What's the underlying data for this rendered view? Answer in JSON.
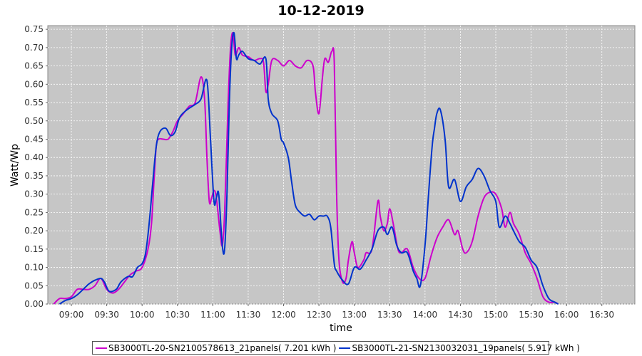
{
  "chart_data": {
    "type": "line",
    "title": "10-12-2019",
    "xlabel": "time",
    "ylabel": "Watt/Wp",
    "x_ticks": [
      "09:00",
      "09:30",
      "10:00",
      "10:30",
      "11:00",
      "11:30",
      "12:00",
      "12:30",
      "13:00",
      "13:30",
      "14:00",
      "14:30",
      "15:00",
      "15:30",
      "16:00",
      "16:30"
    ],
    "y_ticks": [
      "0.00",
      "0.05",
      "0.10",
      "0.15",
      "0.20",
      "0.25",
      "0.30",
      "0.35",
      "0.40",
      "0.45",
      "0.50",
      "0.55",
      "0.60",
      "0.65",
      "0.70",
      "0.75"
    ],
    "xlim": [
      "08:40",
      "16:58"
    ],
    "ylim": [
      0,
      0.76
    ],
    "grid": true,
    "legend_position": "bottom",
    "series": [
      {
        "name": "SB3000TL-20-SN2100578613_21panels( 7.201 kWh )",
        "color": "#cc00cc",
        "points": [
          [
            "08:45",
            0.0
          ],
          [
            "08:50",
            0.015
          ],
          [
            "08:55",
            0.015
          ],
          [
            "09:00",
            0.02
          ],
          [
            "09:05",
            0.04
          ],
          [
            "09:10",
            0.04
          ],
          [
            "09:15",
            0.04
          ],
          [
            "09:20",
            0.05
          ],
          [
            "09:25",
            0.07
          ],
          [
            "09:30",
            0.04
          ],
          [
            "09:35",
            0.03
          ],
          [
            "09:40",
            0.04
          ],
          [
            "09:45",
            0.06
          ],
          [
            "09:50",
            0.08
          ],
          [
            "09:55",
            0.09
          ],
          [
            "10:00",
            0.1
          ],
          [
            "10:05",
            0.15
          ],
          [
            "10:08",
            0.22
          ],
          [
            "10:10",
            0.33
          ],
          [
            "10:12",
            0.43
          ],
          [
            "10:14",
            0.45
          ],
          [
            "10:18",
            0.45
          ],
          [
            "10:22",
            0.45
          ],
          [
            "10:26",
            0.47
          ],
          [
            "10:30",
            0.5
          ],
          [
            "10:35",
            0.52
          ],
          [
            "10:40",
            0.54
          ],
          [
            "10:45",
            0.55
          ],
          [
            "10:50",
            0.62
          ],
          [
            "10:53",
            0.56
          ],
          [
            "10:55",
            0.4
          ],
          [
            "10:57",
            0.28
          ],
          [
            "10:59",
            0.29
          ],
          [
            "11:01",
            0.31
          ],
          [
            "11:03",
            0.29
          ],
          [
            "11:06",
            0.2
          ],
          [
            "11:08",
            0.16
          ],
          [
            "11:10",
            0.25
          ],
          [
            "11:13",
            0.55
          ],
          [
            "11:15",
            0.7
          ],
          [
            "11:17",
            0.74
          ],
          [
            "11:19",
            0.68
          ],
          [
            "11:22",
            0.7
          ],
          [
            "11:25",
            0.68
          ],
          [
            "11:30",
            0.675
          ],
          [
            "11:35",
            0.665
          ],
          [
            "11:40",
            0.67
          ],
          [
            "11:43",
            0.66
          ],
          [
            "11:45",
            0.58
          ],
          [
            "11:47",
            0.6
          ],
          [
            "11:50",
            0.665
          ],
          [
            "11:55",
            0.665
          ],
          [
            "12:00",
            0.65
          ],
          [
            "12:05",
            0.665
          ],
          [
            "12:10",
            0.65
          ],
          [
            "12:15",
            0.645
          ],
          [
            "12:20",
            0.665
          ],
          [
            "12:25",
            0.65
          ],
          [
            "12:27",
            0.58
          ],
          [
            "12:30",
            0.52
          ],
          [
            "12:33",
            0.62
          ],
          [
            "12:35",
            0.67
          ],
          [
            "12:38",
            0.66
          ],
          [
            "12:41",
            0.69
          ],
          [
            "12:43",
            0.66
          ],
          [
            "12:45",
            0.3
          ],
          [
            "12:47",
            0.12
          ],
          [
            "12:50",
            0.06
          ],
          [
            "12:53",
            0.07
          ],
          [
            "12:55",
            0.12
          ],
          [
            "12:58",
            0.17
          ],
          [
            "13:00",
            0.14
          ],
          [
            "13:03",
            0.1
          ],
          [
            "13:08",
            0.12
          ],
          [
            "13:10",
            0.14
          ],
          [
            "13:15",
            0.15
          ],
          [
            "13:20",
            0.28
          ],
          [
            "13:22",
            0.24
          ],
          [
            "13:25",
            0.2
          ],
          [
            "13:28",
            0.22
          ],
          [
            "13:30",
            0.26
          ],
          [
            "13:33",
            0.22
          ],
          [
            "13:37",
            0.15
          ],
          [
            "13:40",
            0.14
          ],
          [
            "13:45",
            0.15
          ],
          [
            "13:50",
            0.1
          ],
          [
            "13:55",
            0.07
          ],
          [
            "14:00",
            0.07
          ],
          [
            "14:05",
            0.13
          ],
          [
            "14:10",
            0.18
          ],
          [
            "14:15",
            0.21
          ],
          [
            "14:20",
            0.23
          ],
          [
            "14:25",
            0.19
          ],
          [
            "14:28",
            0.2
          ],
          [
            "14:32",
            0.15
          ],
          [
            "14:35",
            0.14
          ],
          [
            "14:40",
            0.17
          ],
          [
            "14:45",
            0.24
          ],
          [
            "14:50",
            0.29
          ],
          [
            "14:55",
            0.305
          ],
          [
            "15:00",
            0.3
          ],
          [
            "15:05",
            0.26
          ],
          [
            "15:08",
            0.21
          ],
          [
            "15:12",
            0.25
          ],
          [
            "15:15",
            0.22
          ],
          [
            "15:20",
            0.19
          ],
          [
            "15:25",
            0.14
          ],
          [
            "15:30",
            0.11
          ],
          [
            "15:35",
            0.07
          ],
          [
            "15:40",
            0.02
          ],
          [
            "15:45",
            0.005
          ],
          [
            "15:50",
            0.005
          ],
          [
            "15:53",
            0.0
          ]
        ]
      },
      {
        "name": "SB3000TL-21-SN2130032031_19panels( 5.917 kWh )",
        "color": "#0033cc",
        "points": [
          [
            "08:50",
            0.0
          ],
          [
            "08:55",
            0.01
          ],
          [
            "09:00",
            0.015
          ],
          [
            "09:05",
            0.025
          ],
          [
            "09:10",
            0.04
          ],
          [
            "09:15",
            0.055
          ],
          [
            "09:20",
            0.065
          ],
          [
            "09:25",
            0.07
          ],
          [
            "09:28",
            0.06
          ],
          [
            "09:32",
            0.035
          ],
          [
            "09:38",
            0.04
          ],
          [
            "09:42",
            0.06
          ],
          [
            "09:48",
            0.075
          ],
          [
            "09:52",
            0.075
          ],
          [
            "09:56",
            0.1
          ],
          [
            "10:00",
            0.11
          ],
          [
            "10:03",
            0.14
          ],
          [
            "10:06",
            0.22
          ],
          [
            "10:09",
            0.33
          ],
          [
            "10:12",
            0.43
          ],
          [
            "10:15",
            0.47
          ],
          [
            "10:20",
            0.48
          ],
          [
            "10:24",
            0.46
          ],
          [
            "10:28",
            0.47
          ],
          [
            "10:32",
            0.51
          ],
          [
            "10:38",
            0.53
          ],
          [
            "10:45",
            0.545
          ],
          [
            "10:50",
            0.56
          ],
          [
            "10:55",
            0.61
          ],
          [
            "10:58",
            0.45
          ],
          [
            "11:01",
            0.28
          ],
          [
            "11:03",
            0.29
          ],
          [
            "11:05",
            0.3
          ],
          [
            "11:08",
            0.16
          ],
          [
            "11:10",
            0.15
          ],
          [
            "11:12",
            0.3
          ],
          [
            "11:14",
            0.55
          ],
          [
            "11:16",
            0.7
          ],
          [
            "11:18",
            0.74
          ],
          [
            "11:20",
            0.67
          ],
          [
            "11:22",
            0.68
          ],
          [
            "11:25",
            0.69
          ],
          [
            "11:30",
            0.67
          ],
          [
            "11:35",
            0.665
          ],
          [
            "11:40",
            0.655
          ],
          [
            "11:45",
            0.67
          ],
          [
            "11:47",
            0.56
          ],
          [
            "11:50",
            0.52
          ],
          [
            "11:55",
            0.5
          ],
          [
            "11:58",
            0.45
          ],
          [
            "12:00",
            0.44
          ],
          [
            "12:04",
            0.4
          ],
          [
            "12:07",
            0.33
          ],
          [
            "12:10",
            0.27
          ],
          [
            "12:14",
            0.25
          ],
          [
            "12:18",
            0.24
          ],
          [
            "12:22",
            0.245
          ],
          [
            "12:26",
            0.23
          ],
          [
            "12:30",
            0.24
          ],
          [
            "12:34",
            0.24
          ],
          [
            "12:37",
            0.24
          ],
          [
            "12:40",
            0.21
          ],
          [
            "12:43",
            0.11
          ],
          [
            "12:45",
            0.09
          ],
          [
            "12:50",
            0.065
          ],
          [
            "12:55",
            0.055
          ],
          [
            "13:00",
            0.1
          ],
          [
            "13:05",
            0.095
          ],
          [
            "13:10",
            0.12
          ],
          [
            "13:15",
            0.15
          ],
          [
            "13:20",
            0.2
          ],
          [
            "13:25",
            0.21
          ],
          [
            "13:28",
            0.19
          ],
          [
            "13:32",
            0.21
          ],
          [
            "13:36",
            0.16
          ],
          [
            "13:40",
            0.14
          ],
          [
            "13:45",
            0.14
          ],
          [
            "13:50",
            0.09
          ],
          [
            "13:53",
            0.07
          ],
          [
            "13:56",
            0.05
          ],
          [
            "14:00",
            0.16
          ],
          [
            "14:03",
            0.3
          ],
          [
            "14:06",
            0.43
          ],
          [
            "14:08",
            0.48
          ],
          [
            "14:10",
            0.52
          ],
          [
            "14:13",
            0.53
          ],
          [
            "14:17",
            0.45
          ],
          [
            "14:20",
            0.32
          ],
          [
            "14:25",
            0.34
          ],
          [
            "14:30",
            0.28
          ],
          [
            "14:35",
            0.32
          ],
          [
            "14:40",
            0.34
          ],
          [
            "14:45",
            0.37
          ],
          [
            "14:50",
            0.35
          ],
          [
            "14:55",
            0.31
          ],
          [
            "15:00",
            0.28
          ],
          [
            "15:03",
            0.21
          ],
          [
            "15:08",
            0.24
          ],
          [
            "15:12",
            0.22
          ],
          [
            "15:15",
            0.2
          ],
          [
            "15:20",
            0.17
          ],
          [
            "15:25",
            0.155
          ],
          [
            "15:30",
            0.12
          ],
          [
            "15:35",
            0.1
          ],
          [
            "15:40",
            0.05
          ],
          [
            "15:45",
            0.015
          ],
          [
            "15:50",
            0.005
          ],
          [
            "15:53",
            0.0
          ]
        ]
      }
    ]
  }
}
